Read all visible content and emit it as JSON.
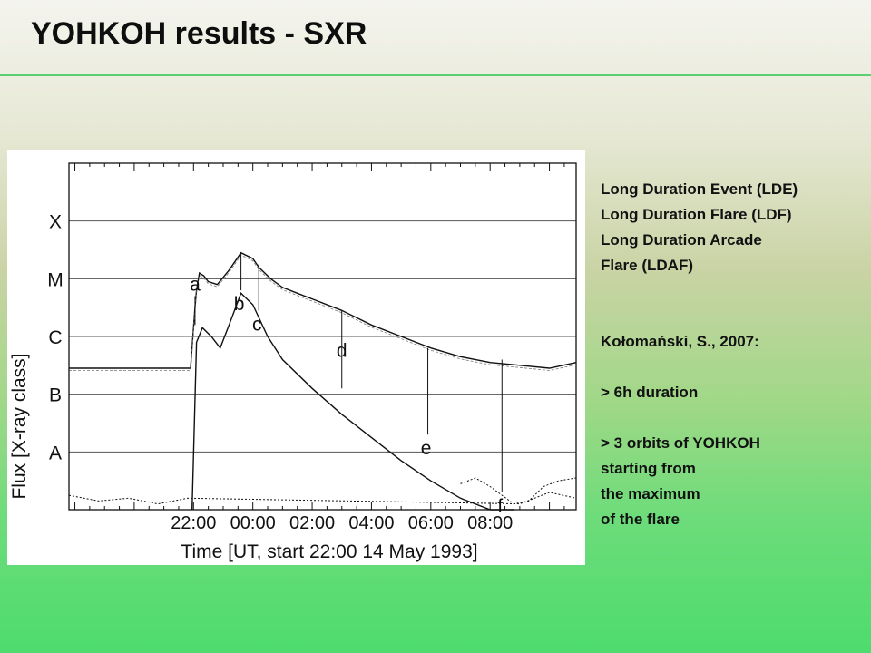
{
  "slide": {
    "title": "YOHKOH results - SXR"
  },
  "side_text": {
    "definitions": [
      "Long Duration Event (LDE)",
      "Long Duration Flare (LDF)",
      "Long Duration Arcade",
      "Flare (LDAF)"
    ],
    "citation": "Kołomański, S., 2007:",
    "criterion_1": "> 6h duration",
    "criterion_2": [
      "> 3 orbits of YOHKOH",
      "starting from",
      "the maximum",
      "of the flare"
    ]
  },
  "chart_data": {
    "type": "line",
    "xlabel": "Time [UT, start  22:00  14 May 1993]",
    "ylabel": "Flux  [X-ray class]",
    "x_ticks": [
      "22:00",
      "00:00",
      "02:00",
      "04:00",
      "06:00",
      "08:00"
    ],
    "x_tick_hours": [
      0,
      2,
      4,
      6,
      8,
      10
    ],
    "xlim_hours": [
      -4.2,
      12.9
    ],
    "y_ticks": [
      "X",
      "M",
      "C",
      "B",
      "A"
    ],
    "y_tick_log_flux": [
      -4,
      -5,
      -6,
      -7,
      -8
    ],
    "ylim_log_flux": [
      -9,
      -3
    ],
    "grid": "horizontal",
    "series": [
      {
        "x": [
          -4.2,
          -0.1,
          0.05,
          0.1,
          0.2,
          0.35,
          0.5,
          0.8,
          1.2,
          1.6,
          2.0,
          2.2,
          2.6,
          3.0,
          3.5,
          4.0,
          5.0,
          6.0,
          7.0,
          8.0,
          9.0,
          10.0,
          11.0,
          12.0,
          12.9
        ],
        "y": [
          -6.55,
          -6.55,
          -5.5,
          -5.2,
          -4.9,
          -4.95,
          -5.05,
          -5.1,
          -4.85,
          -4.55,
          -4.65,
          -4.8,
          -5.0,
          -5.15,
          -5.25,
          -5.35,
          -5.55,
          -5.8,
          -6.0,
          -6.2,
          -6.35,
          -6.45,
          -6.5,
          -6.55,
          -6.45
        ]
      },
      {
        "x": [
          -0.05,
          0.1,
          0.3,
          0.6,
          0.9,
          1.2,
          1.6,
          2.0,
          2.5,
          3.0,
          4.0,
          5.0,
          6.0,
          7.0,
          8.0,
          9.0,
          10.0,
          10.8
        ],
        "y": [
          -9.0,
          -6.1,
          -5.85,
          -6.0,
          -6.2,
          -5.8,
          -5.25,
          -5.45,
          -6.0,
          -6.4,
          -6.9,
          -7.35,
          -7.75,
          -8.15,
          -8.5,
          -8.8,
          -9.0,
          -9.0
        ]
      },
      {
        "x": [
          9.0,
          9.5,
          10.0,
          10.4,
          10.8,
          11.3,
          11.8,
          12.3,
          12.9
        ],
        "y": [
          -8.55,
          -8.45,
          -8.6,
          -8.75,
          -8.9,
          -8.85,
          -8.6,
          -8.5,
          -8.45
        ]
      },
      {
        "x": [
          -4.2,
          -3.2,
          -2.2,
          -1.2,
          -0.2,
          11.0,
          12.0,
          12.9
        ],
        "y": [
          -8.75,
          -8.85,
          -8.8,
          -8.9,
          -8.8,
          -8.9,
          -8.7,
          -8.8
        ]
      }
    ],
    "annotations": [
      {
        "label": "a",
        "x": 0.05,
        "y_top": -5.3,
        "y_bottom": -5.8
      },
      {
        "label": "b",
        "x": 1.6,
        "y_top": -4.55,
        "y_bottom": -5.2
      },
      {
        "label": "c",
        "x": 2.2,
        "y_top": -4.75,
        "y_bottom": -5.55
      },
      {
        "label": "d",
        "x": 5.0,
        "y_top": -5.55,
        "y_bottom": -6.9
      },
      {
        "label": "e",
        "x": 7.9,
        "y_top": -6.2,
        "y_bottom": -7.7
      },
      {
        "label": "f",
        "x": 10.4,
        "y_top": -6.4,
        "y_bottom": -8.7
      }
    ]
  }
}
